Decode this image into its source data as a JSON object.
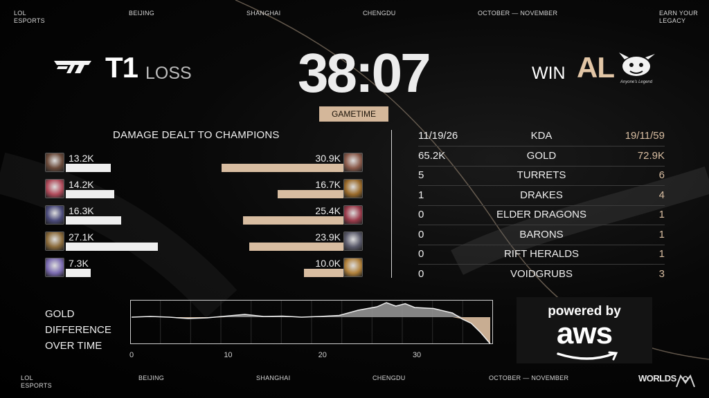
{
  "top_bar": {
    "lol_esports": [
      "LOL",
      "ESPORTS"
    ],
    "city1": "BEIJING",
    "city2": "SHANGHAI",
    "city3": "CHENGDU",
    "dates": "OCTOBER — NOVEMBER",
    "tagline": [
      "EARN YOUR",
      "LEGACY"
    ]
  },
  "bottom_bar": {
    "lol_esports": [
      "LOL",
      "ESPORTS"
    ],
    "city1": "BEIJING",
    "city2": "SHANGHAI",
    "city3": "CHENGDU",
    "dates": "OCTOBER — NOVEMBER",
    "worlds_logo": "WORLDS"
  },
  "teams": {
    "left": {
      "name": "T1",
      "result": "LOSS",
      "logo": "t1-logo-icon"
    },
    "right": {
      "name": "AL",
      "result": "WIN",
      "logo": "anyones-legend-logo-icon",
      "logo_caption": "Anyone's Legend"
    }
  },
  "gametime": {
    "value": "38:07",
    "label": "GAMETIME"
  },
  "damage": {
    "title": "DAMAGE DEALT TO CHAMPIONS",
    "max_value": 30.9,
    "rows": [
      {
        "t1": "13.2K",
        "t1_value": 13.2,
        "al": "30.9K",
        "al_value": 30.9,
        "t1_color": "#6a4a3a",
        "al_color": "#8a5a4a"
      },
      {
        "t1": "14.2K",
        "t1_value": 14.2,
        "al": "16.7K",
        "al_value": 16.7,
        "t1_color": "#b04a5a",
        "al_color": "#9a6a2a"
      },
      {
        "t1": "16.3K",
        "t1_value": 16.3,
        "al": "25.4K",
        "al_value": 25.4,
        "t1_color": "#4a4a7a",
        "al_color": "#9a3a4a"
      },
      {
        "t1": "27.1K",
        "t1_value": 27.1,
        "al": "23.9K",
        "al_value": 23.9,
        "t1_color": "#8a6a3a",
        "al_color": "#5a5a6a"
      },
      {
        "t1": "7.3K",
        "t1_value": 7.3,
        "al": "10.0K",
        "al_value": 10.0,
        "t1_color": "#7a6ab0",
        "al_color": "#b0803a"
      }
    ]
  },
  "stats": [
    {
      "label": "KDA",
      "t1": "11/19/26",
      "al": "19/11/59"
    },
    {
      "label": "GOLD",
      "t1": "65.2K",
      "al": "72.9K"
    },
    {
      "label": "TURRETS",
      "t1": "5",
      "al": "6"
    },
    {
      "label": "DRAKES",
      "t1": "1",
      "al": "4"
    },
    {
      "label": "ELDER DRAGONS",
      "t1": "0",
      "al": "1"
    },
    {
      "label": "BARONS",
      "t1": "0",
      "al": "1"
    },
    {
      "label": "RIFT HERALDS",
      "t1": "0",
      "al": "1"
    },
    {
      "label": "VOIDGRUBS",
      "t1": "0",
      "al": "3"
    }
  ],
  "gold_diff": {
    "title": [
      "GOLD",
      "DIFFERENCE",
      "OVER TIME"
    ],
    "x_ticks": [
      "0",
      "10",
      "20",
      "30"
    ],
    "chart_data": {
      "type": "area",
      "x": [
        0,
        2,
        4,
        6,
        8,
        10,
        12,
        14,
        16,
        18,
        20,
        22,
        24,
        26,
        27,
        28,
        29,
        30,
        32,
        34,
        35,
        36,
        37,
        38
      ],
      "y": [
        0,
        0.2,
        0,
        -0.4,
        -0.2,
        0.3,
        0.8,
        0.2,
        0.3,
        0,
        0.2,
        0.5,
        2.0,
        3.0,
        4.2,
        3.2,
        3.9,
        2.8,
        2.5,
        1.2,
        -0.5,
        -1.8,
        -4.5,
        -7.7
      ],
      "xlim": [
        0,
        38
      ],
      "positive_color": "#9a9a9a",
      "negative_color": "#c8ad92"
    }
  },
  "sponsor": {
    "powered_by": "powered by",
    "brand": "aws"
  }
}
